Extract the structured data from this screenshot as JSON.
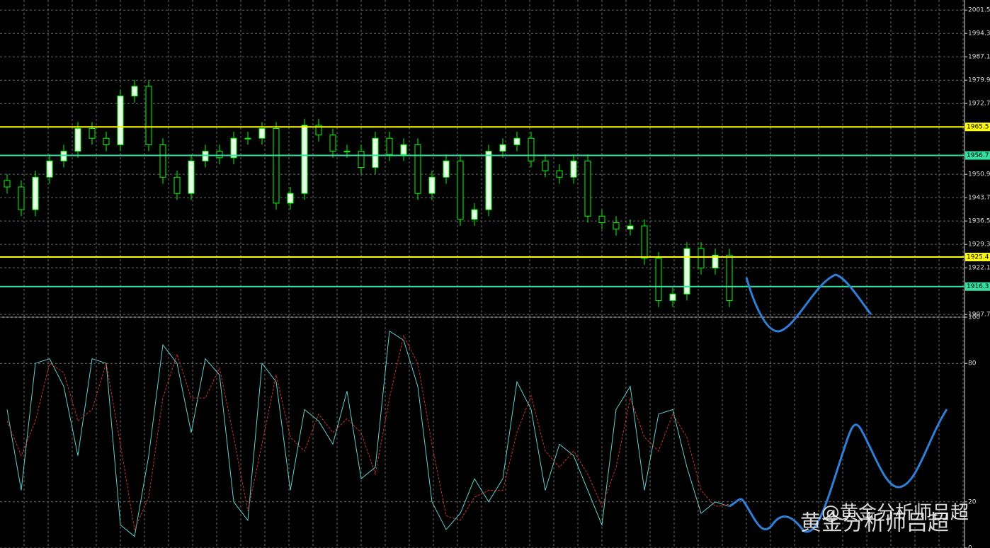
{
  "chart_data": [
    {
      "type": "candlestick",
      "open": [
        1949,
        1947,
        1940,
        1950,
        1955,
        1958,
        1965,
        1962,
        1960,
        1975,
        1978,
        1960,
        1950,
        1945,
        1955,
        1958,
        1956,
        1962,
        1962,
        1965,
        1942,
        1945,
        1966,
        1963,
        1958,
        1958,
        1953,
        1962,
        1957,
        1960,
        1945,
        1950,
        1955,
        1937,
        1940,
        1958,
        1960,
        1962,
        1955,
        1952,
        1950,
        1955,
        1938,
        1936,
        1934,
        1935,
        1925,
        1912,
        1914,
        1928,
        1922,
        1926
      ],
      "high": [
        1951,
        1949,
        1952,
        1957,
        1960,
        1967,
        1967,
        1964,
        1977,
        1980,
        1980,
        1962,
        1952,
        1957,
        1960,
        1960,
        1964,
        1964,
        1967,
        1967,
        1947,
        1968,
        1968,
        1965,
        1960,
        1960,
        1964,
        1964,
        1962,
        1962,
        1952,
        1957,
        1957,
        1942,
        1960,
        1962,
        1964,
        1964,
        1957,
        1954,
        1957,
        1957,
        1940,
        1938,
        1937,
        1937,
        1927,
        1916,
        1930,
        1930,
        1928,
        1928
      ],
      "low": [
        1945,
        1938,
        1938,
        1948,
        1953,
        1956,
        1960,
        1958,
        1958,
        1973,
        1958,
        1948,
        1943,
        1943,
        1953,
        1954,
        1954,
        1960,
        1960,
        1940,
        1940,
        1943,
        1961,
        1956,
        1956,
        1951,
        1951,
        1955,
        1955,
        1943,
        1943,
        1948,
        1935,
        1935,
        1938,
        1956,
        1958,
        1953,
        1950,
        1948,
        1948,
        1936,
        1934,
        1932,
        1932,
        1923,
        1910,
        1910,
        1912,
        1920,
        1920,
        1910
      ],
      "close": [
        1947,
        1940,
        1950,
        1955,
        1958,
        1965,
        1962,
        1960,
        1975,
        1978,
        1960,
        1950,
        1945,
        1955,
        1958,
        1956,
        1962,
        1962,
        1965,
        1942,
        1945,
        1966,
        1963,
        1958,
        1958,
        1953,
        1962,
        1957,
        1960,
        1945,
        1950,
        1955,
        1937,
        1940,
        1958,
        1960,
        1962,
        1955,
        1952,
        1950,
        1955,
        1938,
        1936,
        1934,
        1935,
        1925,
        1912,
        1914,
        1928,
        1922,
        1926,
        1912
      ],
      "ylim": [
        1907.3,
        2004.6
      ],
      "yticks": [
        2001.5,
        1994.3,
        1987.1,
        1979.9,
        1972.7,
        1950.9,
        1943.7,
        1936.5,
        1929.3,
        1922.1,
        1907.7
      ],
      "levels": [
        1965.5,
        1956.7,
        1925.4,
        1916.3
      ],
      "level_colors": [
        "#ffff00",
        "#33e0a0",
        "#ffff00",
        "#33e0a0"
      ],
      "color": "#00ff00",
      "grid": true
    },
    {
      "type": "line",
      "series": [
        {
          "color": "#5fd0d0",
          "values": [
            60,
            25,
            80,
            82,
            70,
            40,
            82,
            80,
            10,
            5,
            40,
            88,
            80,
            50,
            82,
            75,
            20,
            12,
            80,
            72,
            25,
            60,
            55,
            45,
            68,
            30,
            35,
            94,
            90,
            70,
            20,
            8,
            15,
            30,
            20,
            30,
            72,
            60,
            25,
            45,
            40,
            25,
            10,
            60,
            70,
            25,
            58,
            60,
            35,
            15,
            20,
            18
          ]
        },
        {
          "color": "#d03030",
          "values": [
            55,
            40,
            55,
            80,
            76,
            55,
            60,
            80,
            45,
            8,
            22,
            65,
            84,
            65,
            65,
            78,
            48,
            16,
            45,
            75,
            48,
            42,
            58,
            50,
            56,
            50,
            32,
            65,
            92,
            80,
            45,
            14,
            12,
            22,
            25,
            25,
            50,
            66,
            42,
            35,
            42,
            32,
            18,
            35,
            65,
            48,
            42,
            58,
            48,
            25,
            18,
            19
          ]
        }
      ],
      "ylim": [
        0,
        100
      ],
      "yticks": [
        100,
        80,
        20,
        0
      ],
      "grid": true
    }
  ],
  "watermark": {
    "handle": "@黄金分析师吕超",
    "name": "黄金分析师吕超"
  }
}
